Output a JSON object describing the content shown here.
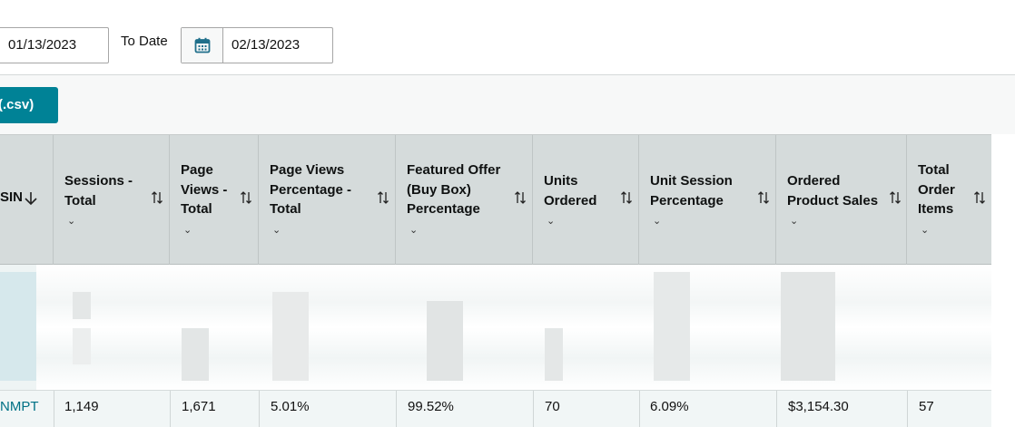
{
  "filters": {
    "from_date": "01/13/2023",
    "to_label": "To Date",
    "to_date": "02/13/2023"
  },
  "toolbar": {
    "download_label": "(.csv)"
  },
  "table": {
    "columns": [
      {
        "key": "asin",
        "line1": "SIN",
        "line2": "",
        "line3": ""
      },
      {
        "key": "sessions",
        "line1": "Sessions -",
        "line2": "Total",
        "line3": ""
      },
      {
        "key": "page_views",
        "line1": "Page",
        "line2": "Views -",
        "line3": "Total"
      },
      {
        "key": "page_views_pct",
        "line1": "Page Views",
        "line2": "Percentage -",
        "line3": "Total"
      },
      {
        "key": "buy_box_pct",
        "line1": "Featured Offer",
        "line2": "(Buy Box)",
        "line3": "Percentage"
      },
      {
        "key": "units_ordered",
        "line1": "Units",
        "line2": "Ordered",
        "line3": ""
      },
      {
        "key": "unit_session_pct",
        "line1": "Unit Session",
        "line2": "Percentage",
        "line3": ""
      },
      {
        "key": "ordered_sales",
        "line1": "Ordered",
        "line2": "Product Sales",
        "line3": ""
      },
      {
        "key": "total_items",
        "line1": "Total",
        "line2": "Order",
        "line3": "Items"
      }
    ],
    "visible_row": {
      "asin": "NMPT",
      "sessions": "1,149",
      "page_views": "1,671",
      "page_views_pct": "5.01%",
      "buy_box_pct": "99.52%",
      "units_ordered": "70",
      "unit_session_pct": "6.09%",
      "ordered_sales": "$3,154.30",
      "total_items": "57"
    }
  },
  "icons": {
    "calendar": "calendar-icon",
    "sort": "sort-arrows-icon",
    "sort_desc": "arrow-down-icon",
    "chevron": "chevron-down-icon"
  },
  "colors": {
    "accent": "#008296",
    "link": "#007185",
    "header_bg": "#d5dbdb"
  }
}
